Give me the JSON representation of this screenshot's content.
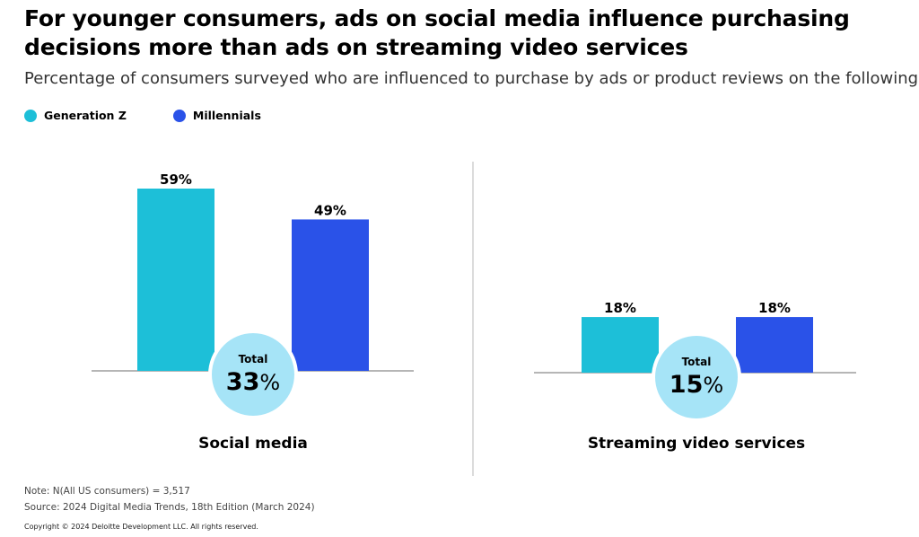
{
  "title": "For younger consumers, ads on social media influence purchasing decisions more than ads on streaming video services",
  "subtitle": "Percentage of consumers surveyed who are influenced to purchase by ads or product reviews on the following",
  "colors": {
    "gen_z": "#1dbfd8",
    "millennials": "#2a52e8",
    "total_circle": "#a6e4f7"
  },
  "legend": [
    {
      "label": "Generation Z",
      "color": "#1dbfd8"
    },
    {
      "label": "Millennials",
      "color": "#2a52e8"
    }
  ],
  "chart_data": [
    {
      "type": "bar",
      "title": "Social media",
      "categories": [
        "Generation Z",
        "Millennials"
      ],
      "values": [
        59,
        49
      ],
      "value_labels": [
        "59%",
        "49%"
      ],
      "total_label": "Total",
      "total_value": "33",
      "total_unit": "%",
      "ylim": [
        0,
        59
      ]
    },
    {
      "type": "bar",
      "title": "Streaming video services",
      "categories": [
        "Generation Z",
        "Millennials"
      ],
      "values": [
        18,
        18
      ],
      "value_labels": [
        "18%",
        "18%"
      ],
      "total_label": "Total",
      "total_value": "15",
      "total_unit": "%",
      "ylim": [
        0,
        59
      ]
    }
  ],
  "footer": {
    "note": "Note: N(All US consumers) = 3,517",
    "source": "Source: 2024 Digital Media Trends, 18th Edition (March 2024)",
    "copyright": "Copyright © 2024 Deloitte Development LLC. All rights reserved."
  }
}
